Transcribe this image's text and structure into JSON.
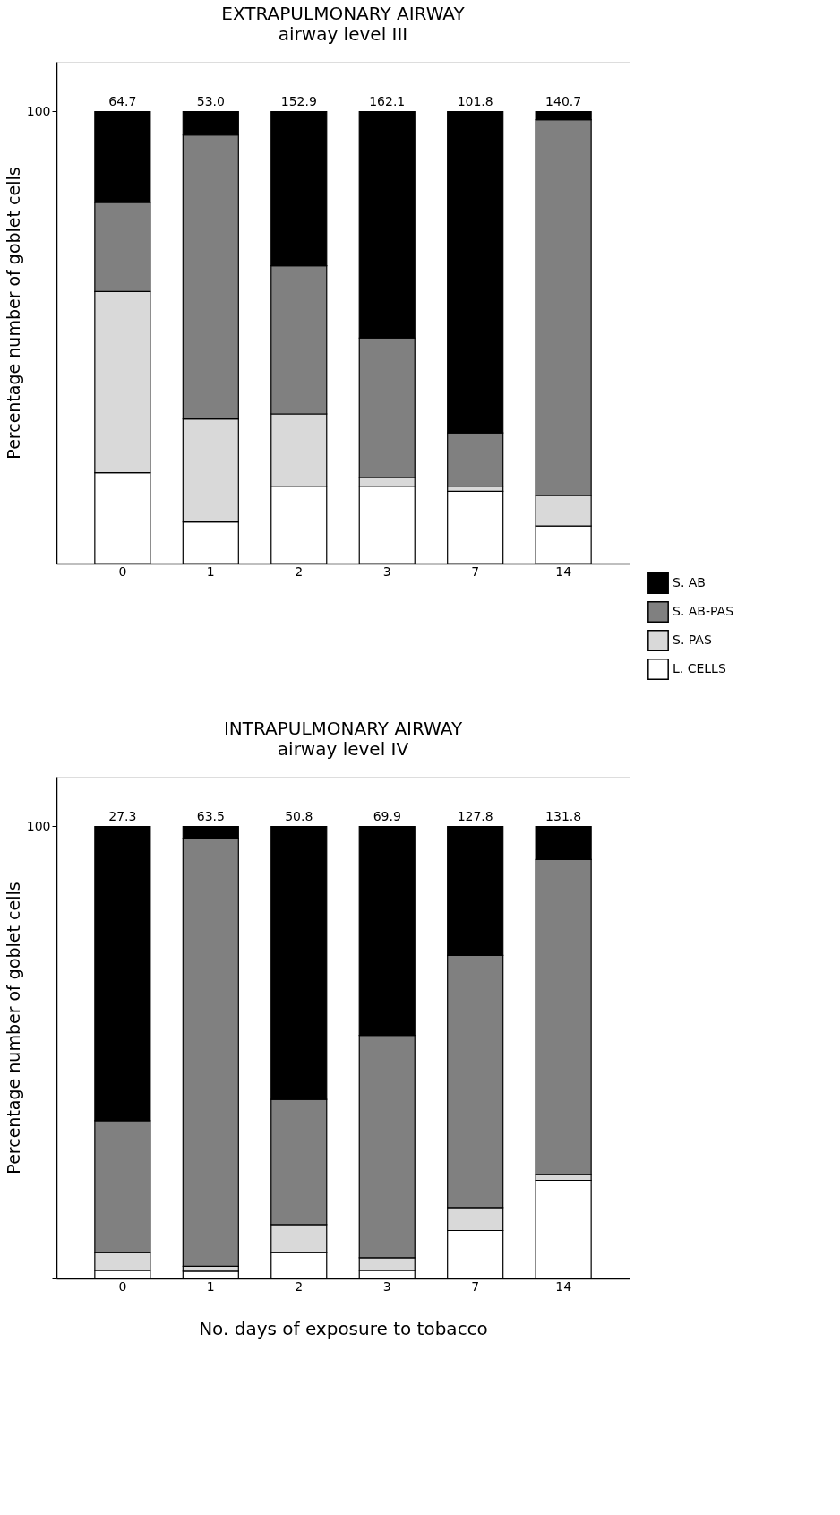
{
  "chart_data": [
    {
      "type": "bar",
      "title": "EXTRAPULMONARY AIRWAY",
      "subtitle": "airway level III",
      "ylabel": "Percentage number of goblet cells",
      "categories": [
        "0",
        "1",
        "2",
        "3",
        "7",
        "14"
      ],
      "stacked": true,
      "ylim": [
        0,
        111
      ],
      "yticks": [
        {
          "value": 0,
          "label": null
        },
        100
      ],
      "grid": false,
      "legend": "bottom right",
      "annotations": [
        {
          "text": "64.7",
          "x": "0",
          "y": 100
        },
        {
          "text": "53.0",
          "x": "1",
          "y": 100
        },
        {
          "text": "152.9",
          "x": "2",
          "y": 100
        },
        {
          "text": "162.1",
          "x": "3",
          "y": 100
        },
        {
          "text": "101.8",
          "x": "7",
          "y": 100
        },
        {
          "text": "140.7",
          "x": "14",
          "y": 100
        }
      ],
      "series": [
        {
          "name": "L. CELLS",
          "color": "#ffffff",
          "values": [
            20.1,
            9.2,
            17.1,
            17.1,
            16.0,
            8.3
          ]
        },
        {
          "name": "S. PAS",
          "color": "#d9d9d9",
          "values": [
            40.1,
            22.8,
            16.0,
            1.9,
            1.1,
            6.8
          ]
        },
        {
          "name": "S. AB-PAS",
          "color": "#808080",
          "values": [
            19.7,
            62.8,
            32.8,
            30.9,
            11.8,
            83.1
          ]
        },
        {
          "name": "S. AB",
          "color": "#000000",
          "values": [
            20.1,
            5.2,
            34.1,
            50.1,
            71.1,
            1.8
          ]
        }
      ]
    },
    {
      "type": "bar",
      "title": "INTRAPULMONARY AIRWAY",
      "subtitle": "airway level IV",
      "ylabel": "Percentage number of goblet cells",
      "xlabel": "No. days of exposure to tobacco",
      "categories": [
        "0",
        "1",
        "2",
        "3",
        "7",
        "14"
      ],
      "stacked": true,
      "ylim": [
        0,
        111
      ],
      "yticks": [
        {
          "value": 0,
          "label": null
        },
        100
      ],
      "grid": false,
      "annotations": [
        {
          "text": "27.3",
          "x": "0",
          "y": 100
        },
        {
          "text": "63.5",
          "x": "1",
          "y": 100
        },
        {
          "text": "50.8",
          "x": "2",
          "y": 100
        },
        {
          "text": "69.9",
          "x": "3",
          "y": 100
        },
        {
          "text": "127.8",
          "x": "7",
          "y": 100
        },
        {
          "text": "131.8",
          "x": "14",
          "y": 100
        }
      ],
      "series": [
        {
          "color": "#ffffff",
          "values": [
            1.8,
            1.6,
            5.7,
            1.8,
            10.6,
            21.7
          ]
        },
        {
          "color": "#d9d9d9",
          "values": [
            3.9,
            1.1,
            6.2,
            2.8,
            5.1,
            1.3
          ]
        },
        {
          "color": "#808080",
          "values": [
            29.2,
            94.7,
            27.7,
            49.2,
            55.8,
            69.7
          ]
        },
        {
          "color": "#000000",
          "values": [
            65.1,
            2.6,
            60.4,
            46.2,
            28.5,
            7.3
          ]
        }
      ]
    }
  ]
}
